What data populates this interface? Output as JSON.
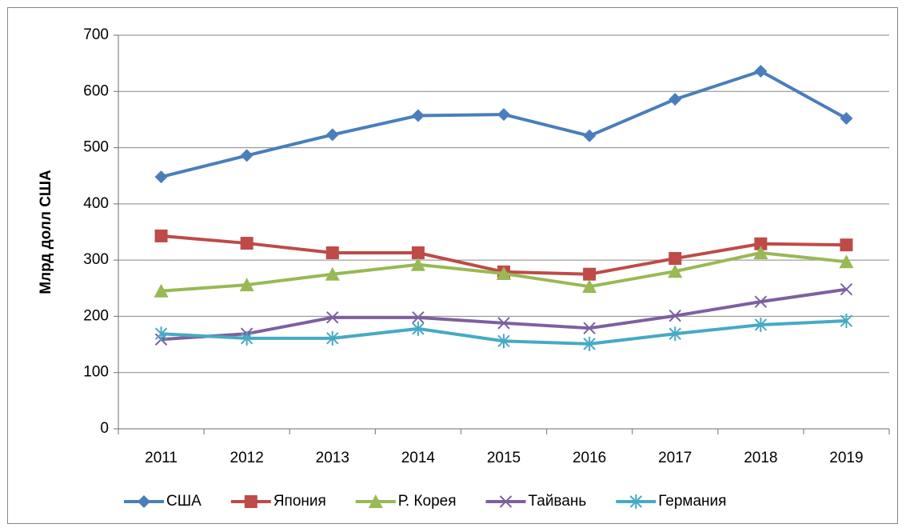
{
  "chart_data": {
    "type": "line",
    "y_label": "Млрд долл США",
    "categories": [
      "2011",
      "2012",
      "2013",
      "2014",
      "2015",
      "2016",
      "2017",
      "2018",
      "2019"
    ],
    "series": [
      {
        "name": "США",
        "color": "#4a7ebb",
        "marker": "diamond",
        "values": [
          448,
          486,
          523,
          557,
          559,
          521,
          586,
          636,
          552
        ]
      },
      {
        "name": "Япония",
        "color": "#be4b48",
        "marker": "square",
        "values": [
          343,
          330,
          313,
          313,
          279,
          275,
          303,
          329,
          327
        ]
      },
      {
        "name": "Р. Корея",
        "color": "#98b954",
        "marker": "triangle",
        "values": [
          245,
          256,
          275,
          292,
          276,
          253,
          280,
          313,
          297
        ]
      },
      {
        "name": "Тайвань",
        "color": "#7d60a0",
        "marker": "x",
        "values": [
          159,
          169,
          198,
          198,
          188,
          179,
          201,
          226,
          248
        ]
      },
      {
        "name": "Германия",
        "color": "#46aac5",
        "marker": "asterisk",
        "values": [
          169,
          161,
          161,
          178,
          156,
          151,
          169,
          185,
          192
        ]
      }
    ],
    "ylim": [
      0,
      700
    ],
    "yticks": [
      0,
      100,
      200,
      300,
      400,
      500,
      600,
      700
    ],
    "grid": true,
    "legend": "bottom"
  }
}
